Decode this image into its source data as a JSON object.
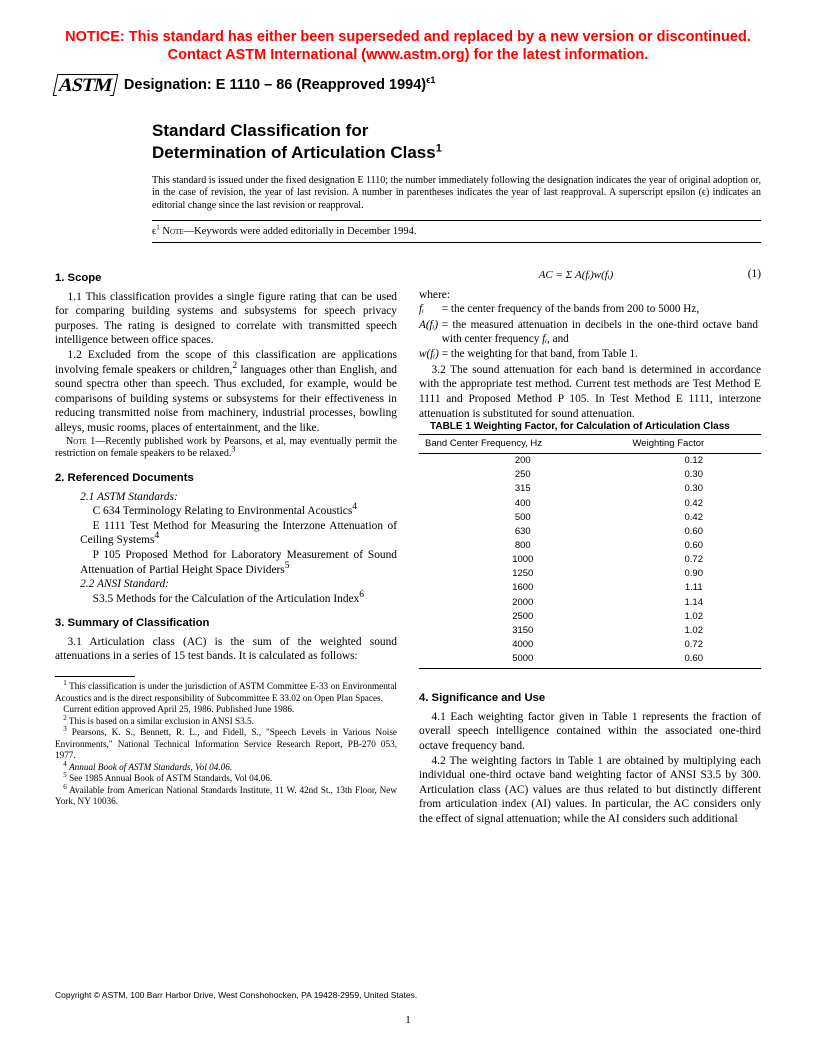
{
  "notice": {
    "line1": "NOTICE: This standard has either been superseded and replaced by a new version or discontinued.",
    "line2": "Contact ASTM International (www.astm.org) for the latest information."
  },
  "logo_text": "ASTM",
  "designation": {
    "label": "Designation: E 1110 – 86 (Reapproved 1994)",
    "sup": "ϵ1"
  },
  "title": {
    "line1": "Standard Classification for",
    "line2": "Determination of Articulation Class",
    "sup": "1"
  },
  "issuance": "This standard is issued under the fixed designation E 1110; the number immediately following the designation indicates the year of original adoption or, in the case of revision, the year of last revision. A number in parentheses indicates the year of last reapproval. A superscript epsilon (ϵ) indicates an editorial change since the last revision or reapproval.",
  "eps_note": {
    "prefix": "ϵ",
    "sup": "1",
    "label": " Note—",
    "text": "Keywords were added editorially in December 1994."
  },
  "s1": {
    "head": "1. Scope",
    "p1": "1.1 This classification provides a single figure rating that can be used for comparing building systems and subsystems for speech privacy purposes. The rating is designed to correlate with transmitted speech intelligence between office spaces.",
    "p2a": "1.2 Excluded from the scope of this classification are applications involving female speakers or children,",
    "p2b": " languages other than English, and sound spectra other than speech. Thus excluded, for example, would be comparisons of building systems or subsystems for their effectiveness in reducing transmitted noise from machinery, industrial processes, bowling alleys, music rooms, places of entertainment, and the like.",
    "note_label": "Note 1—",
    "note": "Recently published work by Pearsons, et al, may eventually permit the restriction on female speakers to be relaxed.",
    "note_sup": "3"
  },
  "s2": {
    "head": "2. Referenced Documents",
    "sub1": "2.1 ASTM Standards:",
    "r1a": "C 634 Terminology Relating to Environmental Acoustics",
    "r2a": "E 1111 Test Method for Measuring the Interzone Attenuation of Ceiling Systems",
    "r3a": "P 105 Proposed Method for Laboratory Measurement of Sound Attenuation of Partial Height Space Dividers",
    "sub2": "2.2 ANSI Standard:",
    "r4a": "S3.5 Methods for the Calculation of the Articulation Index"
  },
  "s3": {
    "head": "3. Summary of Classification",
    "p1": "3.1 Articulation class (AC) is the sum of the weighted sound attenuations in a series of 15 test bands. It is calculated as follows:",
    "eqn": "AC = Σ A(fᵢ)w(fᵢ)",
    "eqn_num": "(1)",
    "where": "where:",
    "w1s": "fᵢ",
    "w1d": "= the center frequency of the bands from 200 to 5000 Hz,",
    "w2s": "A(fᵢ)",
    "w2d_a": "= the measured attenuation in decibels in the one-third octave band with center frequency ",
    "w2d_b": "fᵢ",
    "w2d_c": ", and",
    "w3s": "w(fᵢ)",
    "w3d": "= the weighting for that band, from Table 1.",
    "p2": "3.2 The sound attenuation for each band is determined in accordance with the appropriate test method. Current test methods are Test Method E 1111 and Proposed Method P 105. In Test Method E 1111, interzone attenuation is substituted for sound attenuation."
  },
  "table1": {
    "title": "TABLE 1  Weighting Factor, for Calculation of Articulation Class",
    "col1": "Band Center Frequency, Hz",
    "col2": "Weighting Factor",
    "rows": [
      [
        "200",
        "0.12"
      ],
      [
        "250",
        "0.30"
      ],
      [
        "315",
        "0.30"
      ],
      [
        "400",
        "0.42"
      ],
      [
        "500",
        "0.42"
      ],
      [
        "630",
        "0.60"
      ],
      [
        "800",
        "0.60"
      ],
      [
        "1000",
        "0.72"
      ],
      [
        "1250",
        "0.90"
      ],
      [
        "1600",
        "1.11"
      ],
      [
        "2000",
        "1.14"
      ],
      [
        "2500",
        "1.02"
      ],
      [
        "3150",
        "1.02"
      ],
      [
        "4000",
        "0.72"
      ],
      [
        "5000",
        "0.60"
      ]
    ]
  },
  "s4": {
    "head": "4. Significance and Use",
    "p1": "4.1 Each weighting factor given in Table 1 represents the fraction of overall speech intelligence contained within the associated one-third octave frequency band.",
    "p2": "4.2 The weighting factors in Table 1 are obtained by multiplying each individual one-third octave band weighting factor of ANSI S3.5 by 300. Articulation class (AC) values are thus related to but distinctly different from articulation index (AI) values. In particular, the AC considers only the effect of signal attenuation; while the AI considers such additional"
  },
  "footnotes": {
    "f1": " This classification is under the jurisdiction of ASTM Committee E-33 on Environmental Acoustics and is the direct responsibility of Subcommittee E 33.02 on Open Plan Spaces.",
    "f1b": "Current edition approved April 25, 1986. Published June 1986.",
    "f2": " This is based on a similar exclusion in ANSI S3.5.",
    "f3": " Pearsons, K. S., Bennett, R. L., and Fidell, S., \"Speech Levels in Various Noise Environments,\" National Technical Information Service Research Report, PB-270 053, 1977.",
    "f4": "Annual Book of ASTM Standards, Vol 04.06.",
    "f5": " See 1985 Annual Book of ASTM Standards, Vol 04.06.",
    "f6": " Available from American National Standards Institute, 11 W. 42nd St., 13th Floor, New York, NY 10036."
  },
  "copyright": "Copyright © ASTM, 100 Barr Harbor Drive, West Conshohocken, PA 19428-2959, United States.",
  "pagenum": "1"
}
